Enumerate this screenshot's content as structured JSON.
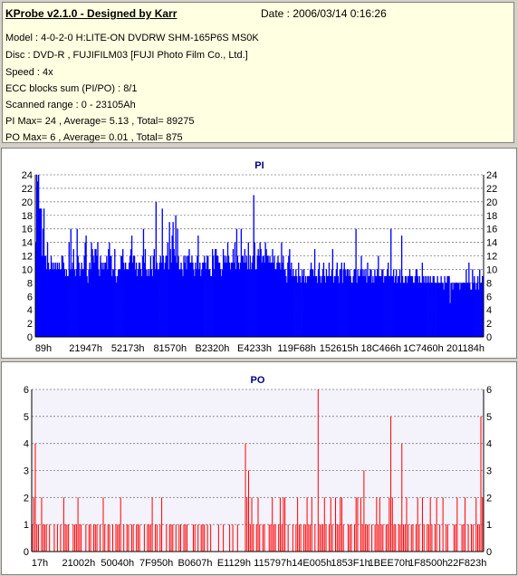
{
  "info": {
    "title": "KProbe v2.1.0 - Designed by Karr",
    "date": "Date : 2006/03/14 0:16:26",
    "lines": [
      "Model : 4-0-2-0 H:LITE-ON DVDRW SHM-165P6S MS0K",
      "Disc : DVD-R , FUJIFILM03 [FUJI Photo Film Co., Ltd.]",
      "Speed : 4x",
      "ECC blocks sum (PI/PO) : 8/1",
      "Scanned range : 0 - 23105Ah",
      "PI Max= 24 , Average= 5.13 , Total= 89275",
      "PO Max= 6 , Average= 0.01 , Total= 875"
    ]
  },
  "colors": {
    "pi_bar": "#0000ff",
    "po_bar": "#ff0000",
    "info_bg": "#ffffe1",
    "po_plot_bg": "#f4f2fa"
  },
  "chart_data": [
    {
      "type": "bar",
      "title": "PI",
      "ylim": [
        0,
        24
      ],
      "yticks": [
        0,
        2,
        4,
        6,
        8,
        10,
        12,
        14,
        16,
        18,
        20,
        22,
        24
      ],
      "xtick_labels": [
        "89h",
        "21947h",
        "52173h",
        "81570h",
        "B2320h",
        "E4233h",
        "119F68h",
        "152615h",
        "18C466h",
        "1C7460h",
        "201184h"
      ],
      "grid": "horizontal dashed",
      "max": 24,
      "values": [
        14,
        24,
        23,
        24,
        19,
        19,
        19,
        12,
        16,
        19,
        12,
        12,
        10,
        14,
        11,
        10,
        10,
        12,
        11,
        10,
        11,
        10,
        11,
        10,
        11,
        10,
        11,
        10,
        10,
        12,
        12,
        11,
        10,
        9,
        10,
        9,
        9,
        14,
        10,
        16,
        10,
        11,
        13,
        10,
        9,
        10,
        16,
        12,
        11,
        9,
        10,
        11,
        10,
        10,
        12,
        14,
        15,
        9,
        8,
        10,
        11,
        10,
        14,
        13,
        12,
        11,
        13,
        13,
        12,
        14,
        10,
        9,
        12,
        11,
        10,
        11,
        10,
        11,
        11,
        12,
        10,
        13,
        14,
        12,
        12,
        9,
        10,
        10,
        13,
        9,
        8,
        9,
        10,
        10,
        10,
        12,
        12,
        13,
        11,
        10,
        11,
        10,
        10,
        10,
        11,
        12,
        13,
        15,
        11,
        12,
        12,
        10,
        11,
        9,
        10,
        11,
        11,
        10,
        9,
        12,
        16,
        11,
        13,
        10,
        9,
        10,
        9,
        10,
        12,
        10,
        9,
        12,
        13,
        10,
        20,
        11,
        10,
        10,
        11,
        12,
        11,
        19,
        12,
        10,
        11,
        12,
        12,
        14,
        10,
        17,
        13,
        11,
        15,
        17,
        13,
        12,
        18,
        11,
        16,
        12,
        10,
        10,
        11,
        10,
        9,
        12,
        11,
        12,
        10,
        12,
        12,
        13,
        11,
        11,
        12,
        11,
        10,
        9,
        11,
        10,
        12,
        15,
        10,
        11,
        9,
        10,
        11,
        11,
        12,
        11,
        10,
        12,
        12,
        10,
        10,
        9,
        9,
        13,
        12,
        10,
        13,
        13,
        12,
        12,
        11,
        11,
        10,
        9,
        10,
        13,
        12,
        11,
        12,
        11,
        14,
        12,
        11,
        10,
        11,
        11,
        13,
        11,
        14,
        10,
        16,
        12,
        11,
        10,
        11,
        16,
        12,
        12,
        11,
        13,
        11,
        12,
        10,
        14,
        10,
        12,
        10,
        11,
        12,
        21,
        14,
        10,
        10,
        12,
        13,
        12,
        14,
        13,
        11,
        12,
        12,
        11,
        14,
        13,
        12,
        12,
        11,
        12,
        11,
        11,
        13,
        11,
        12,
        10,
        10,
        11,
        12,
        11,
        11,
        10,
        14,
        11,
        12,
        10,
        10,
        9,
        8,
        11,
        12,
        13,
        10,
        11,
        9,
        10,
        9,
        9,
        10,
        9,
        8,
        11,
        9,
        9,
        8,
        10,
        9,
        10,
        8,
        9,
        8,
        9,
        9,
        9,
        10,
        11,
        10,
        10,
        9,
        13,
        9,
        9,
        8,
        10,
        11,
        9,
        8,
        9,
        10,
        11,
        9,
        8,
        10,
        9,
        9,
        11,
        9,
        9,
        10,
        13,
        8,
        9,
        9,
        10,
        11,
        9,
        8,
        10,
        10,
        11,
        8,
        10,
        11,
        10,
        9,
        10,
        10,
        9,
        10,
        9,
        8,
        8,
        9,
        10,
        10,
        16,
        8,
        10,
        9,
        9,
        10,
        12,
        10,
        9,
        10,
        9,
        10,
        8,
        11,
        9,
        9,
        10,
        10,
        8,
        9,
        8,
        10,
        9,
        9,
        10,
        12,
        9,
        9,
        9,
        10,
        10,
        8,
        9,
        9,
        9,
        10,
        11,
        9,
        9,
        16,
        9,
        9,
        10,
        8,
        9,
        10,
        8,
        9,
        9,
        10,
        8,
        15,
        9,
        8,
        8,
        9,
        9,
        8,
        9,
        9,
        10,
        9,
        9,
        9,
        8,
        8,
        9,
        10,
        10,
        9,
        8,
        9,
        8,
        8,
        11,
        9,
        8,
        9,
        8,
        9,
        8,
        9,
        8,
        9,
        8,
        8,
        9,
        9,
        8,
        8,
        8,
        9,
        8,
        8,
        8,
        9,
        8,
        8,
        7,
        9,
        8,
        8,
        9,
        9,
        9,
        5,
        8,
        8,
        7,
        8,
        8,
        8,
        8,
        8,
        8,
        8,
        7,
        8,
        8,
        8,
        8,
        8,
        8,
        10,
        8,
        8,
        11,
        8,
        7,
        7,
        10,
        8,
        9,
        8,
        7,
        8,
        9,
        7,
        10,
        8,
        8,
        9,
        9
      ]
    },
    {
      "type": "bar",
      "title": "PO",
      "ylim": [
        0,
        6
      ],
      "yticks": [
        0,
        1,
        2,
        3,
        4,
        5,
        6
      ],
      "xtick_labels": [
        "17h",
        "21002h",
        "50040h",
        "7F950h",
        "B0607h",
        "E1129h",
        "115797h",
        "14E005h",
        "1853F1h",
        "1BEE70h",
        "1F8500h",
        "22F823h"
      ],
      "grid": "horizontal dashed",
      "max": 6,
      "values": [
        1,
        2,
        4,
        1,
        1,
        0,
        2,
        1,
        1,
        1,
        0,
        1,
        0,
        0,
        1,
        0,
        1,
        0,
        1,
        0,
        2,
        1,
        1,
        1,
        0,
        0,
        1,
        1,
        1,
        2,
        1,
        1,
        0,
        0,
        1,
        0,
        1,
        1,
        0,
        1,
        1,
        1,
        0,
        1,
        0,
        2,
        1,
        0,
        1,
        1,
        0,
        1,
        0,
        1,
        1,
        1,
        2,
        0,
        1,
        0,
        1,
        1,
        0,
        1,
        1,
        0,
        1,
        1,
        1,
        0,
        0,
        1,
        0,
        1,
        1,
        1,
        2,
        0,
        1,
        1,
        0,
        1,
        2,
        0,
        0,
        1,
        0,
        1,
        1,
        1,
        0,
        1,
        0,
        1,
        1,
        0,
        1,
        1,
        1,
        0,
        0,
        0,
        1,
        1,
        0,
        1,
        0,
        1,
        1,
        1,
        0,
        1,
        0,
        1,
        0,
        0,
        0,
        0,
        1,
        0,
        0,
        1,
        0,
        0,
        0,
        1,
        0,
        1,
        0,
        0,
        1,
        0,
        0,
        0,
        0,
        4,
        2,
        3,
        1,
        2,
        1,
        0,
        1,
        2,
        1,
        0,
        1,
        1,
        0,
        0,
        1,
        1,
        2,
        1,
        1,
        0,
        1,
        2,
        1,
        2,
        2,
        0,
        1,
        0,
        0,
        1,
        0,
        1,
        2,
        1,
        1,
        0,
        1,
        1,
        2,
        1,
        1,
        2,
        0,
        1,
        0,
        6,
        1,
        1,
        1,
        2,
        1,
        0,
        1,
        2,
        1,
        0,
        2,
        1,
        1,
        2,
        2,
        1,
        0,
        0,
        1,
        1,
        1,
        0,
        1,
        2,
        2,
        0,
        2,
        1,
        3,
        1,
        1,
        1,
        0,
        1,
        0,
        1,
        2,
        1,
        2,
        1,
        1,
        0,
        1,
        1,
        2,
        5,
        2,
        1,
        1,
        0,
        1,
        1,
        4,
        1,
        1,
        2,
        1,
        0,
        1,
        1,
        0,
        1,
        2,
        1,
        0,
        2,
        1,
        0,
        1,
        1,
        2,
        1,
        0,
        1,
        2,
        0,
        1,
        0,
        2,
        0,
        1,
        1,
        0,
        0,
        0,
        1,
        1,
        2,
        0,
        0,
        1,
        1,
        2,
        0,
        1,
        0,
        1,
        1,
        0,
        2,
        1,
        1,
        5,
        2
      ]
    }
  ]
}
